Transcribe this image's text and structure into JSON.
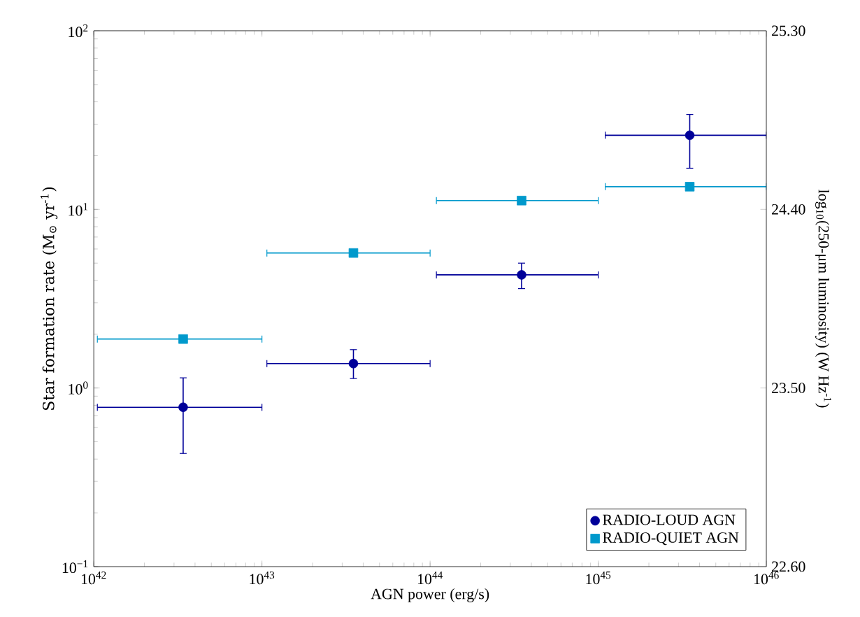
{
  "chart_data": {
    "type": "scatter",
    "xlabel": "AGN power (erg/s)",
    "ylabel": "Star formation rate (M$_{⊙}$ yr$^{-1}$)",
    "y2label": "log$_{10}$(250-μm luminosity) (W Hz$^{-1}$)",
    "log": "xy",
    "xlim": [
      1e+42,
      1e+46
    ],
    "ylim": [
      0.1,
      100
    ],
    "xticks": [
      {
        "value": 1e+42,
        "label": "10$^{42}$"
      },
      {
        "value": 1e+43,
        "label": "10$^{43}$"
      },
      {
        "value": 1e+44,
        "label": "10$^{44}$"
      },
      {
        "value": 1e+45,
        "label": "10$^{45}$"
      },
      {
        "value": 1e+46,
        "label": "10$^{46}$"
      }
    ],
    "yticks": [
      {
        "value": 0.1,
        "label": "10$^{−1}$"
      },
      {
        "value": 1,
        "label": "10$^{0}$"
      },
      {
        "value": 10,
        "label": "10$^{1}$"
      },
      {
        "value": 100,
        "label": "10$^{2}$"
      }
    ],
    "y2lim": [
      22.6,
      25.3
    ],
    "y2ticks": [
      {
        "value": 22.6,
        "label": "22.60"
      },
      {
        "value": 23.5,
        "label": "23.50"
      },
      {
        "value": 24.4,
        "label": "24.40"
      },
      {
        "value": 25.3,
        "label": "25.30"
      }
    ],
    "legend": "bottom right",
    "series": [
      {
        "name": "RADIO-LOUD AGN",
        "color": "#000099",
        "marker": "circle",
        "x": [
          3.4e+42,
          3.5e+43,
          3.5e+44,
          3.5e+45
        ],
        "values": [
          0.78,
          1.37,
          4.3,
          26
        ],
        "errors": [
          [
            0.43,
            1.14
          ],
          [
            1.13,
            1.64
          ],
          [
            3.6,
            5.0
          ],
          [
            17,
            34
          ]
        ],
        "xerrors": [
          [
            1.05e+42,
            1e+43
          ],
          [
            1.07e+43,
            1e+44
          ],
          [
            1.09e+44,
            1e+45
          ],
          [
            1.1e+45,
            1e+46
          ]
        ]
      },
      {
        "name": "RADIO-QUIET AGN",
        "color": "#0099cc",
        "marker": "square",
        "x": [
          3.4e+42,
          3.5e+43,
          3.5e+44,
          3.5e+45
        ],
        "values": [
          1.88,
          5.7,
          11.2,
          13.4
        ],
        "xerrors": [
          [
            1.05e+42,
            1e+43
          ],
          [
            1.07e+43,
            1e+44
          ],
          [
            1.09e+44,
            1e+45
          ],
          [
            1.1e+45,
            1e+46
          ]
        ]
      }
    ]
  }
}
